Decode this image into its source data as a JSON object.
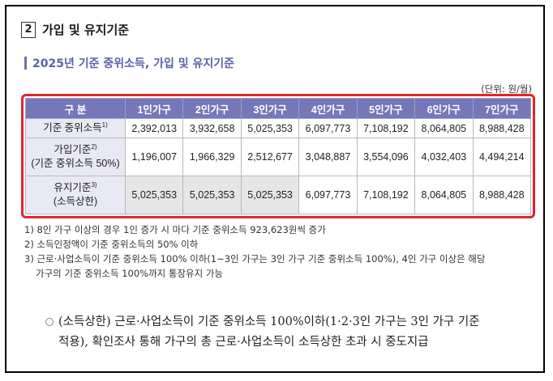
{
  "section": {
    "number": "2",
    "title": "가입 및 유지기준"
  },
  "subtitle": "2025년 기준 중위소득, 가입 및 유지기준",
  "unit": "(단위: 원/월)",
  "table": {
    "headers": [
      "구 분",
      "1인가구",
      "2인가구",
      "3인가구",
      "4인가구",
      "5인가구",
      "6인가구",
      "7인가구"
    ],
    "rows": [
      {
        "label_line1": "기준 중위소득",
        "sup": "1)",
        "label_line2": "",
        "values": [
          "2,392,013",
          "3,932,658",
          "5,025,353",
          "6,097,773",
          "7,108,192",
          "8,064,805",
          "8,988,428"
        ]
      },
      {
        "label_line1": "가입기준",
        "sup": "2)",
        "label_line2": "(기준 중위소득 50%)",
        "values": [
          "1,196,007",
          "1,966,329",
          "2,512,677",
          "3,048,887",
          "3,554,096",
          "4,032,403",
          "4,494,214"
        ]
      },
      {
        "label_line1": "유지기준",
        "sup": "3)",
        "label_line2": "(소득상한)",
        "values": [
          "5,025,353",
          "5,025,353",
          "5,025,353",
          "6,097,773",
          "7,108,192",
          "8,064,805",
          "8,988,428"
        ]
      }
    ]
  },
  "notes": [
    "1) 8인 가구 이상의 경우 1인 증가 시 마다 기준 중위소득 923,623원씩 증가",
    "2) 소득인정액이 기준 중위소득의 50% 이하",
    "3) 근로·사업소득이 기준 중위소득 100% 이하(1~3인 가구는 3인 가구 기준 중위소득 100%), 4인 가구 이상은 해당",
    "가구의 기준 중위소득 100%까지 통장유지 가능"
  ],
  "paragraph": {
    "line1": "(소득상한) 근로·사업소득이 기준 중위소득 100%이하(1·2·3인 가구는 3인 가구 기준",
    "line2": "적용), 확인조사 통해 가구의 총 근로·사업소득이 소득상한 초과 시 중도지급"
  }
}
